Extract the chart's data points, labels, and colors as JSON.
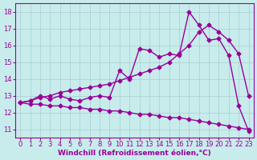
{
  "background_color": "#c8ecec",
  "line_color": "#990099",
  "grid_color": "#aacccc",
  "xlabel": "Windchill (Refroidissement éolien,°C)",
  "x_ticks": [
    0,
    1,
    2,
    3,
    4,
    5,
    6,
    7,
    8,
    9,
    10,
    11,
    12,
    13,
    14,
    15,
    16,
    17,
    18,
    19,
    20,
    21,
    22,
    23
  ],
  "y_ticks": [
    11,
    12,
    13,
    14,
    15,
    16,
    17,
    18
  ],
  "ylim": [
    10.5,
    18.5
  ],
  "xlim": [
    -0.5,
    23.5
  ],
  "line1_x": [
    0,
    1,
    2,
    3,
    4,
    5,
    6,
    7,
    8,
    9,
    10,
    11,
    12,
    13,
    14,
    15,
    16,
    17,
    18,
    19,
    20,
    21,
    22,
    23
  ],
  "line1_y": [
    12.6,
    12.7,
    13.0,
    12.8,
    13.0,
    12.8,
    12.7,
    12.9,
    13.0,
    12.9,
    14.5,
    14.0,
    15.8,
    15.7,
    15.3,
    15.5,
    15.4,
    18.0,
    17.2,
    16.3,
    16.4,
    15.4,
    12.4,
    10.9
  ],
  "line2_x": [
    0,
    1,
    2,
    3,
    4,
    5,
    6,
    7,
    8,
    9,
    10,
    11,
    12,
    13,
    14,
    15,
    16,
    17,
    18,
    19,
    20,
    21,
    22,
    23
  ],
  "line2_y": [
    12.6,
    12.7,
    12.9,
    13.0,
    13.2,
    13.3,
    13.4,
    13.5,
    13.6,
    13.7,
    13.9,
    14.1,
    14.3,
    14.5,
    14.7,
    15.0,
    15.5,
    16.0,
    16.8,
    17.2,
    16.8,
    16.3,
    15.5,
    13.0
  ],
  "line3_x": [
    0,
    1,
    2,
    3,
    4,
    5,
    6,
    7,
    8,
    9,
    10,
    11,
    12,
    13,
    14,
    15,
    16,
    17,
    18,
    19,
    20,
    21,
    22,
    23
  ],
  "line3_y": [
    12.6,
    12.5,
    12.5,
    12.4,
    12.4,
    12.3,
    12.3,
    12.2,
    12.2,
    12.1,
    12.1,
    12.0,
    11.9,
    11.9,
    11.8,
    11.7,
    11.7,
    11.6,
    11.5,
    11.4,
    11.3,
    11.2,
    11.1,
    11.0
  ],
  "marker": "D",
  "markersize": 2.5,
  "linewidth": 1.0,
  "xlabel_fontsize": 6.5,
  "tick_fontsize": 6
}
